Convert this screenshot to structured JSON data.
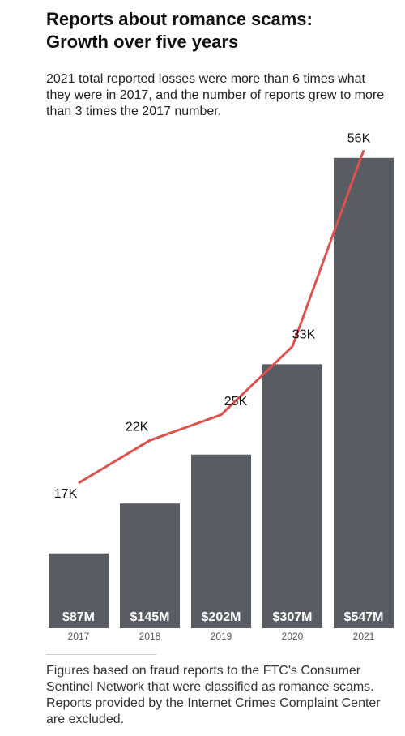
{
  "chart_data": {
    "type": "bar-line",
    "title": "Reports about romance scams: Growth over five years",
    "subtitle": "2021 total reported losses were more than 6 times what they were in 2017, and the number of reports grew to more than 3 times the 2017 number.",
    "categories": [
      "2017",
      "2018",
      "2019",
      "2020",
      "2021"
    ],
    "series": [
      {
        "type": "bar",
        "color": "#5a5c64",
        "values": [
          87,
          145,
          202,
          307,
          547
        ],
        "value_labels": [
          "$87M",
          "$145M",
          "$202M",
          "$307M",
          "$547M"
        ]
      },
      {
        "type": "line",
        "axis": "y2",
        "color": "#d9534f",
        "values": [
          17000,
          22000,
          25000,
          33000,
          56000
        ],
        "value_labels": [
          "17K",
          "22K",
          "25K",
          "33K",
          "56K"
        ]
      }
    ],
    "ylim": [
      0,
      560
    ],
    "y2lim": [
      0,
      56400
    ],
    "note": "Figures based on fraud reports to the FTC's Consumer Sentinel Network that were classified as romance scams. Reports provided by the Internet Crimes Complaint Center are excluded."
  }
}
